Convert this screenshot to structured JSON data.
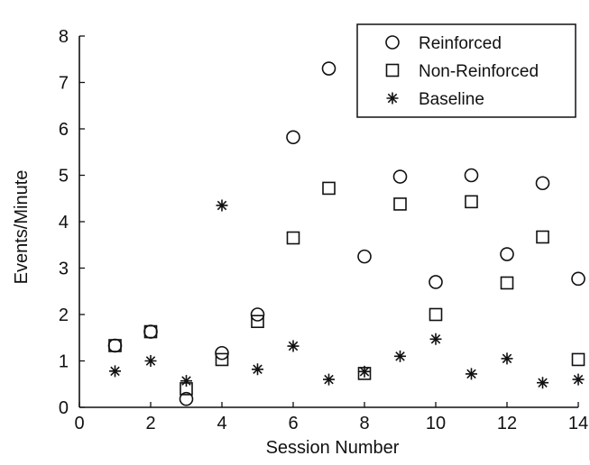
{
  "chart_data": {
    "type": "scatter",
    "title": "",
    "xlabel": "Session Number",
    "ylabel": "Events/Minute",
    "xlim": [
      0,
      14
    ],
    "ylim": [
      0,
      8
    ],
    "x_ticks": [
      0,
      2,
      4,
      6,
      8,
      10,
      12,
      14
    ],
    "y_ticks": [
      0,
      1,
      2,
      3,
      4,
      5,
      6,
      7,
      8
    ],
    "grid": false,
    "legend_position": "top-right",
    "series": [
      {
        "name": "Reinforced",
        "marker": "circle",
        "color": "#111111",
        "points": [
          {
            "x": 1,
            "y": 1.33
          },
          {
            "x": 2,
            "y": 1.63
          },
          {
            "x": 3,
            "y": 0.18
          },
          {
            "x": 4,
            "y": 1.17
          },
          {
            "x": 5,
            "y": 2.0
          },
          {
            "x": 6,
            "y": 5.82
          },
          {
            "x": 7,
            "y": 7.3
          },
          {
            "x": 8,
            "y": 3.25
          },
          {
            "x": 9,
            "y": 4.97
          },
          {
            "x": 10,
            "y": 2.7
          },
          {
            "x": 11,
            "y": 5.0
          },
          {
            "x": 12,
            "y": 3.3
          },
          {
            "x": 13,
            "y": 4.83
          },
          {
            "x": 14,
            "y": 2.77
          }
        ]
      },
      {
        "name": "Non-Reinforced",
        "marker": "square",
        "color": "#111111",
        "points": [
          {
            "x": 1,
            "y": 1.33
          },
          {
            "x": 2,
            "y": 1.63
          },
          {
            "x": 3,
            "y": 0.4
          },
          {
            "x": 4,
            "y": 1.03
          },
          {
            "x": 5,
            "y": 1.85
          },
          {
            "x": 6,
            "y": 3.65
          },
          {
            "x": 7,
            "y": 4.72
          },
          {
            "x": 8,
            "y": 0.73
          },
          {
            "x": 9,
            "y": 4.38
          },
          {
            "x": 10,
            "y": 2.0
          },
          {
            "x": 11,
            "y": 4.43
          },
          {
            "x": 12,
            "y": 2.68
          },
          {
            "x": 13,
            "y": 3.67
          },
          {
            "x": 14,
            "y": 1.03
          }
        ]
      },
      {
        "name": "Baseline",
        "marker": "star",
        "color": "#111111",
        "points": [
          {
            "x": 1,
            "y": 0.78
          },
          {
            "x": 2,
            "y": 1.0
          },
          {
            "x": 3,
            "y": 0.57
          },
          {
            "x": 4,
            "y": 4.35
          },
          {
            "x": 5,
            "y": 0.82
          },
          {
            "x": 6,
            "y": 1.32
          },
          {
            "x": 7,
            "y": 0.6
          },
          {
            "x": 8,
            "y": 0.77
          },
          {
            "x": 9,
            "y": 1.1
          },
          {
            "x": 10,
            "y": 1.47
          },
          {
            "x": 11,
            "y": 0.72
          },
          {
            "x": 12,
            "y": 1.05
          },
          {
            "x": 13,
            "y": 0.53
          },
          {
            "x": 14,
            "y": 0.6
          }
        ]
      }
    ]
  }
}
